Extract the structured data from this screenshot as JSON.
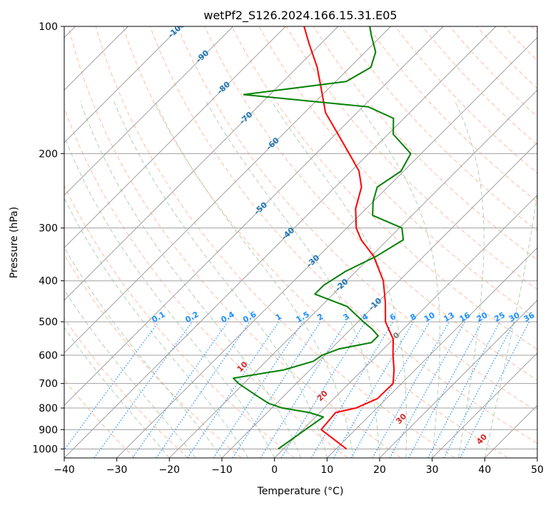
{
  "chart_data": {
    "type": "line",
    "chart_kind": "skew-t log-p diagram",
    "title": "wetPf2_S126.2024.166.15.31.E05",
    "xlabel": "Temperature (°C)",
    "ylabel": "Pressure (hPa)",
    "xlim": [
      -40,
      50
    ],
    "ylim": [
      1050,
      100
    ],
    "y_scale": "log",
    "x_ticks": [
      -40,
      -30,
      -20,
      -10,
      0,
      10,
      20,
      30,
      40,
      50
    ],
    "x_tick_labels": [
      "−40",
      "−30",
      "−20",
      "−10",
      "0",
      "10",
      "20",
      "30",
      "40",
      "50"
    ],
    "y_ticks": [
      100,
      200,
      300,
      400,
      500,
      600,
      700,
      800,
      900,
      1000
    ],
    "y_tick_labels": [
      "100",
      "200",
      "300",
      "400",
      "500",
      "600",
      "700",
      "800",
      "900",
      "1000"
    ],
    "grid": true,
    "colors": {
      "temperature": "#ff0000",
      "dewpoint": "#008000",
      "isotherm": "#a0a0a0",
      "dry_adiabat": "#ffa07a",
      "moist_adiabat": "#8fbc8f",
      "mixing_ratio": "#1e90ff",
      "isotherm_label": "#1f77b4",
      "dry_label": "#d62728"
    },
    "series": [
      {
        "name": "temperature",
        "points": [
          {
            "p": 1000,
            "t": 12.0
          },
          {
            "p": 900,
            "t": 3.5
          },
          {
            "p": 820,
            "t": 3.0
          },
          {
            "p": 800,
            "t": 6.0
          },
          {
            "p": 760,
            "t": 8.3
          },
          {
            "p": 700,
            "t": 8.4
          },
          {
            "p": 650,
            "t": 6.0
          },
          {
            "p": 600,
            "t": 3.0
          },
          {
            "p": 550,
            "t": 0.0
          },
          {
            "p": 500,
            "t": -4.8
          },
          {
            "p": 450,
            "t": -8.5
          },
          {
            "p": 400,
            "t": -13.0
          },
          {
            "p": 350,
            "t": -19.5
          },
          {
            "p": 320,
            "t": -25.0
          },
          {
            "p": 300,
            "t": -28.2
          },
          {
            "p": 270,
            "t": -32.0
          },
          {
            "p": 240,
            "t": -35.0
          },
          {
            "p": 220,
            "t": -38.5
          },
          {
            "p": 200,
            "t": -43.7
          },
          {
            "p": 180,
            "t": -49.5
          },
          {
            "p": 160,
            "t": -56.0
          },
          {
            "p": 140,
            "t": -61.5
          },
          {
            "p": 125,
            "t": -66.2
          },
          {
            "p": 110,
            "t": -72.2
          },
          {
            "p": 100,
            "t": -76.5
          }
        ]
      },
      {
        "name": "dewpoint",
        "points": [
          {
            "p": 1000,
            "t": -1.0
          },
          {
            "p": 900,
            "t": 0.5
          },
          {
            "p": 840,
            "t": 1.5
          },
          {
            "p": 820,
            "t": -2.0
          },
          {
            "p": 800,
            "t": -8.0
          },
          {
            "p": 780,
            "t": -11.5
          },
          {
            "p": 750,
            "t": -15.0
          },
          {
            "p": 700,
            "t": -21.0
          },
          {
            "p": 680,
            "t": -23.0
          },
          {
            "p": 650,
            "t": -15.0
          },
          {
            "p": 620,
            "t": -11.0
          },
          {
            "p": 600,
            "t": -10.5
          },
          {
            "p": 580,
            "t": -8.5
          },
          {
            "p": 560,
            "t": -3.5
          },
          {
            "p": 540,
            "t": -3.5
          },
          {
            "p": 520,
            "t": -6.0
          },
          {
            "p": 500,
            "t": -9.0
          },
          {
            "p": 460,
            "t": -15.0
          },
          {
            "p": 430,
            "t": -23.5
          },
          {
            "p": 410,
            "t": -23.5
          },
          {
            "p": 380,
            "t": -22.0
          },
          {
            "p": 350,
            "t": -19.0
          },
          {
            "p": 320,
            "t": -17.0
          },
          {
            "p": 300,
            "t": -19.5
          },
          {
            "p": 280,
            "t": -27.5
          },
          {
            "p": 260,
            "t": -30.0
          },
          {
            "p": 240,
            "t": -32.0
          },
          {
            "p": 220,
            "t": -30.5
          },
          {
            "p": 200,
            "t": -32.0
          },
          {
            "p": 180,
            "t": -39.0
          },
          {
            "p": 165,
            "t": -42.0
          },
          {
            "p": 155,
            "t": -49.0
          },
          {
            "p": 145,
            "t": -75.0
          },
          {
            "p": 135,
            "t": -58.0
          },
          {
            "p": 125,
            "t": -56.0
          },
          {
            "p": 115,
            "t": -58.0
          },
          {
            "p": 105,
            "t": -62.0
          },
          {
            "p": 100,
            "t": -64.0
          }
        ]
      }
    ],
    "isotherm_labels": [
      "-100",
      "-90",
      "-80",
      "-70",
      "-60",
      "-50",
      "-40",
      "-30",
      "-20",
      "-10"
    ],
    "isotherm_label_values": [
      -100,
      -90,
      -80,
      -70,
      -60,
      -50,
      -40,
      -30,
      -20,
      -10
    ],
    "isotherm_zero_label": "0",
    "mixing_ratio_labels": [
      "0.1",
      "0.2",
      "0.4",
      "0.6",
      "1",
      "1.5",
      "2",
      "3",
      "4",
      "6",
      "8",
      "10",
      "13",
      "16",
      "20",
      "25",
      "30",
      "36"
    ],
    "mixing_ratio_values": [
      0.1,
      0.2,
      0.4,
      0.6,
      1,
      1.5,
      2,
      3,
      4,
      6,
      8,
      10,
      13,
      16,
      20,
      25,
      30,
      36
    ],
    "dry_adiabat_labels": [
      "10",
      "20",
      "30",
      "40"
    ],
    "dry_adiabat_label_values": [
      10,
      20,
      30,
      40
    ]
  }
}
